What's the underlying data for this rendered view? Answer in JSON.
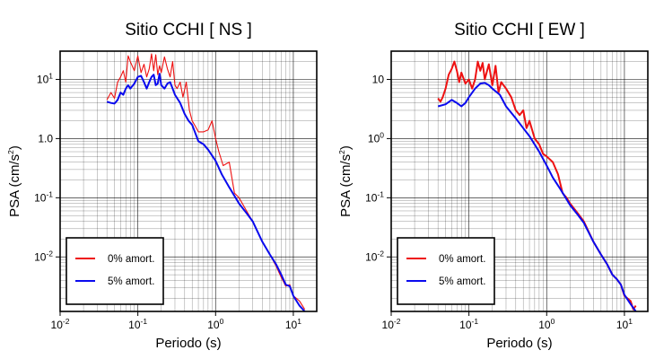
{
  "chart_data": [
    {
      "type": "line",
      "title": "Sitio CCHI [ NS ]",
      "xlabel": "Periodo (s)",
      "ylabel_main": "PSA (cm/s",
      "ylabel_sup": "2",
      "ylabel_tail": ")",
      "x_scale": "log",
      "y_scale": "log",
      "xlim": [
        0.01,
        20
      ],
      "ylim": [
        0.0012,
        30
      ],
      "grid": true,
      "legend_position": "bottom-left",
      "x_ticks": [
        {
          "base": "10",
          "exp": "-2",
          "value": 0.01
        },
        {
          "base": "10",
          "exp": "-1",
          "value": 0.1
        },
        {
          "base": "10",
          "exp": "0",
          "value": 1
        },
        {
          "base": "10",
          "exp": "1",
          "value": 10
        }
      ],
      "y_ticks": [
        {
          "label": "10",
          "sup": "",
          "value": 10
        },
        {
          "label": "10",
          "sup": "0",
          "value": 1
        },
        {
          "label": "10",
          "sup": "-1",
          "value": 0.1
        },
        {
          "label": "10",
          "sup": "-2",
          "value": 0.01
        }
      ],
      "y_ticks_left": [
        {
          "label": "10",
          "sup": "1",
          "value": 10
        },
        {
          "label": "1.0",
          "sup": "",
          "value": 1
        },
        {
          "label": "10",
          "sup": "-1",
          "value": 0.1
        },
        {
          "label": "10",
          "sup": "-2",
          "value": 0.01
        }
      ],
      "series": [
        {
          "name": "0% amort.",
          "color": "#ee1111",
          "width": 1.1,
          "x": [
            0.04,
            0.045,
            0.05,
            0.055,
            0.06,
            0.065,
            0.07,
            0.075,
            0.08,
            0.09,
            0.1,
            0.11,
            0.12,
            0.13,
            0.14,
            0.15,
            0.16,
            0.17,
            0.18,
            0.19,
            0.2,
            0.22,
            0.24,
            0.26,
            0.28,
            0.3,
            0.32,
            0.35,
            0.38,
            0.42,
            0.46,
            0.5,
            0.55,
            0.6,
            0.7,
            0.8,
            0.9,
            1.0,
            1.1,
            1.25,
            1.5,
            1.75,
            2.0,
            2.5,
            3.0,
            4.0,
            5.0,
            6.0,
            7.0,
            8.0,
            9.0,
            10.0,
            12.0,
            14.0
          ],
          "y": [
            4.5,
            6.0,
            4.8,
            9.0,
            11.0,
            14.0,
            9.0,
            25.0,
            20.0,
            14.0,
            25.0,
            13.0,
            18.0,
            11.0,
            15.0,
            27.0,
            14.0,
            26.0,
            12.0,
            17.0,
            13.0,
            24.0,
            15.0,
            11.0,
            20.0,
            8.0,
            7.0,
            9.0,
            5.0,
            9.0,
            3.0,
            2.0,
            1.6,
            1.3,
            1.3,
            1.4,
            2.0,
            1.0,
            0.6,
            0.35,
            0.4,
            0.12,
            0.1,
            0.06,
            0.04,
            0.018,
            0.011,
            0.007,
            0.0045,
            0.0032,
            0.0034,
            0.0022,
            0.0018,
            0.0013
          ]
        },
        {
          "name": "5% amort.",
          "color": "#0a0aee",
          "width": 2.0,
          "x": [
            0.04,
            0.045,
            0.05,
            0.055,
            0.06,
            0.065,
            0.07,
            0.075,
            0.08,
            0.09,
            0.1,
            0.11,
            0.12,
            0.13,
            0.14,
            0.15,
            0.16,
            0.17,
            0.18,
            0.19,
            0.2,
            0.22,
            0.24,
            0.26,
            0.28,
            0.3,
            0.35,
            0.4,
            0.45,
            0.5,
            0.6,
            0.7,
            0.8,
            1.0,
            1.2,
            1.5,
            2.0,
            2.5,
            3.0,
            4.0,
            5.0,
            6.0,
            7.0,
            8.0,
            9.0,
            10.0,
            12.0,
            14.0
          ],
          "y": [
            4.2,
            4.0,
            3.9,
            4.5,
            6.0,
            5.5,
            7.0,
            8.0,
            7.0,
            8.5,
            11.0,
            11.5,
            9.0,
            7.0,
            9.0,
            11.0,
            12.0,
            8.0,
            8.5,
            12.5,
            8.0,
            7.0,
            8.5,
            9.0,
            7.0,
            5.5,
            4.0,
            2.6,
            2.0,
            1.7,
            0.9,
            0.8,
            0.65,
            0.42,
            0.25,
            0.15,
            0.08,
            0.055,
            0.04,
            0.018,
            0.011,
            0.0075,
            0.005,
            0.0034,
            0.0032,
            0.0022,
            0.0015,
            0.0012
          ]
        }
      ]
    },
    {
      "type": "line",
      "title": "Sitio CCHI [ EW ]",
      "xlabel": "Periodo (s)",
      "ylabel_main": "PSA (cm/s",
      "ylabel_sup": "2",
      "ylabel_tail": ")",
      "x_scale": "log",
      "y_scale": "log",
      "xlim": [
        0.01,
        20
      ],
      "ylim": [
        0.0012,
        30
      ],
      "grid": true,
      "legend_position": "bottom-left",
      "x_ticks": [
        {
          "base": "10",
          "exp": "-2",
          "value": 0.01
        },
        {
          "base": "10",
          "exp": "-1",
          "value": 0.1
        },
        {
          "base": "10",
          "exp": "0",
          "value": 1
        },
        {
          "base": "10",
          "exp": "1",
          "value": 10
        }
      ],
      "y_ticks": [
        {
          "label": "10",
          "sup": "",
          "value": 10
        },
        {
          "label": "10",
          "sup": "0",
          "value": 1
        },
        {
          "label": "10",
          "sup": "-1",
          "value": 0.1
        },
        {
          "label": "10",
          "sup": "-2",
          "value": 0.01
        }
      ],
      "y_ticks_left": [
        {
          "label": "10",
          "sup": "1",
          "value": 10
        },
        {
          "label": "1.0",
          "sup": "",
          "value": 1
        },
        {
          "label": "10",
          "sup": "-1",
          "value": 0.1
        },
        {
          "label": "10",
          "sup": "-2",
          "value": 0.01
        }
      ],
      "series": [
        {
          "name": "0% amort.",
          "color": "#ee1111",
          "width": 2.0,
          "x": [
            0.04,
            0.043,
            0.046,
            0.05,
            0.055,
            0.06,
            0.065,
            0.07,
            0.075,
            0.08,
            0.09,
            0.1,
            0.11,
            0.12,
            0.13,
            0.14,
            0.15,
            0.16,
            0.18,
            0.2,
            0.22,
            0.24,
            0.26,
            0.3,
            0.35,
            0.4,
            0.45,
            0.5,
            0.55,
            0.6,
            0.7,
            0.8,
            0.9,
            1.0,
            1.2,
            1.4,
            1.6,
            1.8,
            2.0,
            2.5,
            3.0,
            4.0,
            5.0,
            6.0,
            7.0,
            8.0,
            9.0,
            10.0,
            12.0,
            13.0,
            14.0
          ],
          "y": [
            4.8,
            4.2,
            5.0,
            7.0,
            12.0,
            15.0,
            20.0,
            14.0,
            9.0,
            13.0,
            8.5,
            10.0,
            7.0,
            10.0,
            20.0,
            14.0,
            19.0,
            10.0,
            18.0,
            8.0,
            17.0,
            6.0,
            9.0,
            7.0,
            5.0,
            3.0,
            2.5,
            3.0,
            1.5,
            2.0,
            1.0,
            0.8,
            0.55,
            0.5,
            0.4,
            0.25,
            0.12,
            0.1,
            0.08,
            0.055,
            0.04,
            0.018,
            0.011,
            0.0075,
            0.005,
            0.0042,
            0.0034,
            0.0022,
            0.0018,
            0.0013,
            0.0015
          ]
        },
        {
          "name": "5% amort.",
          "color": "#0a0aee",
          "width": 2.0,
          "x": [
            0.04,
            0.05,
            0.06,
            0.07,
            0.08,
            0.09,
            0.1,
            0.12,
            0.14,
            0.16,
            0.18,
            0.2,
            0.25,
            0.3,
            0.4,
            0.5,
            0.6,
            0.8,
            1.0,
            1.2,
            1.5,
            2.0,
            2.5,
            3.0,
            4.0,
            5.0,
            6.0,
            7.0,
            8.0,
            9.0,
            10.0,
            12.0,
            14.0
          ],
          "y": [
            3.5,
            3.8,
            4.5,
            4.0,
            3.5,
            4.0,
            5.0,
            7.0,
            8.5,
            8.7,
            8.0,
            7.0,
            5.5,
            3.5,
            2.2,
            1.5,
            1.1,
            0.6,
            0.35,
            0.22,
            0.14,
            0.075,
            0.052,
            0.038,
            0.018,
            0.011,
            0.0075,
            0.005,
            0.0042,
            0.0034,
            0.0023,
            0.0016,
            0.0012
          ]
        }
      ]
    }
  ]
}
